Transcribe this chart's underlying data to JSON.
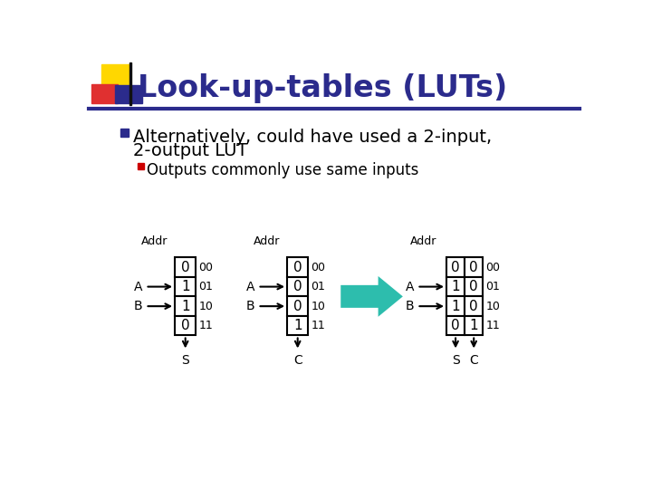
{
  "title": "Look-up-tables (LUTs)",
  "title_color": "#2B2B8C",
  "bg_color": "#FFFFFF",
  "bullet1_line1": "Alternatively, could have used a 2-input,",
  "bullet1_line2": "2-output LUT",
  "bullet2": "Outputs commonly use same inputs",
  "lut1_values": [
    "0",
    "1",
    "1",
    "0"
  ],
  "lut1_labels": [
    "00",
    "01",
    "10",
    "11"
  ],
  "lut1_output": "S",
  "lut2_values": [
    "0",
    "0",
    "0",
    "1"
  ],
  "lut2_labels": [
    "00",
    "01",
    "10",
    "11"
  ],
  "lut2_output": "C",
  "lut3_values": [
    [
      "0",
      "0"
    ],
    [
      "1",
      "0"
    ],
    [
      "1",
      "0"
    ],
    [
      "0",
      "1"
    ]
  ],
  "lut3_labels": [
    "00",
    "01",
    "10",
    "11"
  ],
  "lut3_outputs": [
    "S",
    "C"
  ],
  "arrow_color": "#2DBDAD",
  "sq_yellow": "#FFD700",
  "sq_red": "#E03030",
  "sq_blue": "#2B2B8C",
  "line_color": "#2B2B8C",
  "bullet1_color": "#2B2B8C",
  "bullet2_color": "#CC0000",
  "text_color": "#000000"
}
